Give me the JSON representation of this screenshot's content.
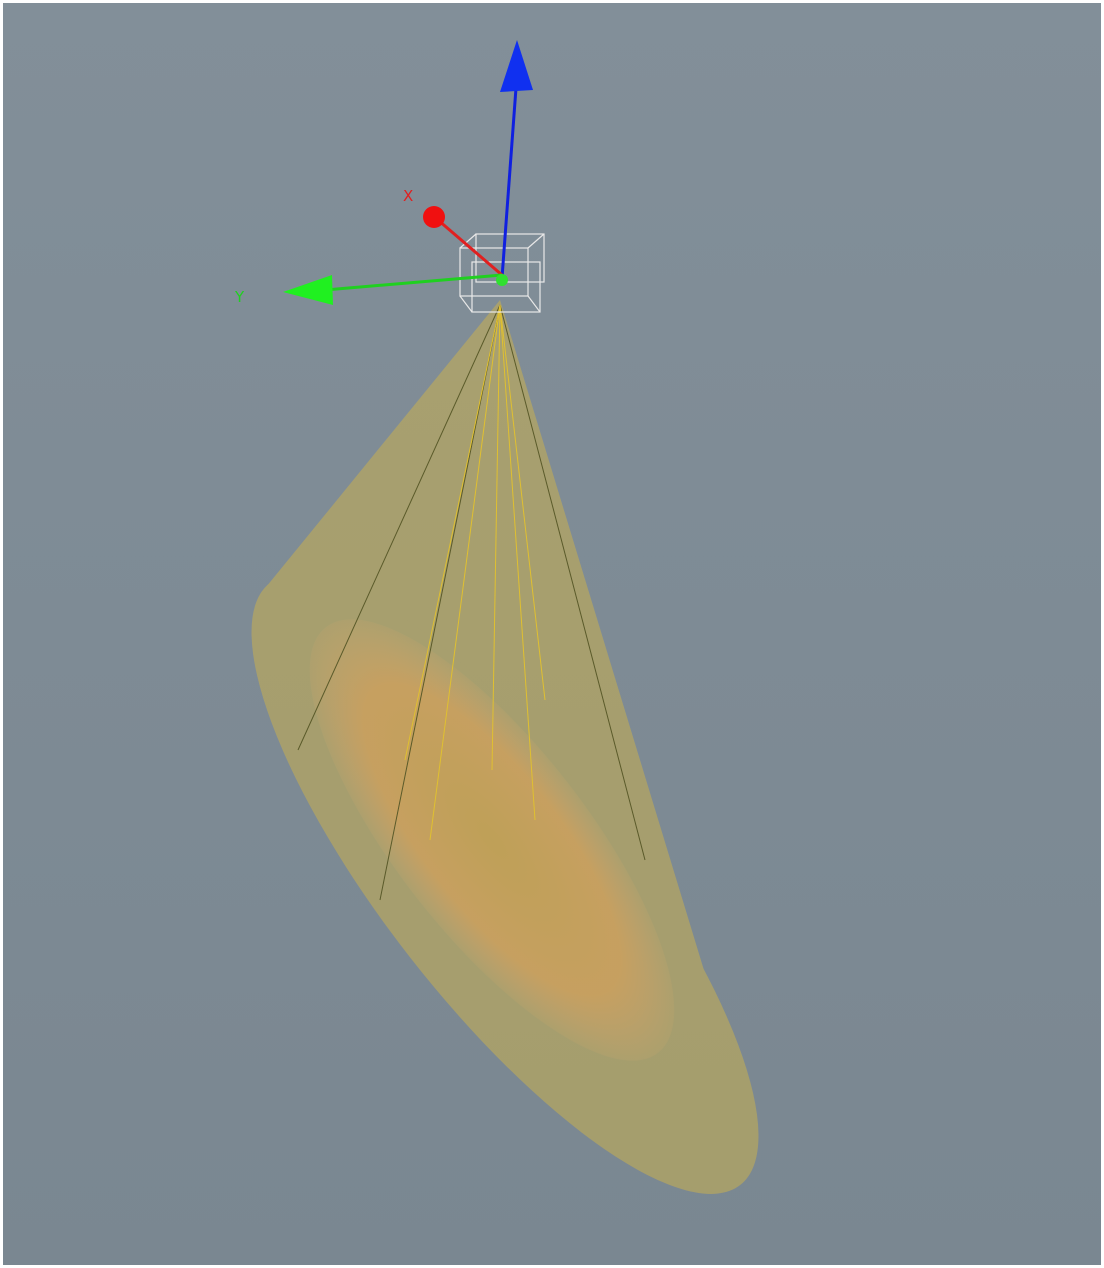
{
  "gizmo": {
    "axes": [
      {
        "label": "X"
      },
      {
        "label": "Y"
      }
    ]
  }
}
